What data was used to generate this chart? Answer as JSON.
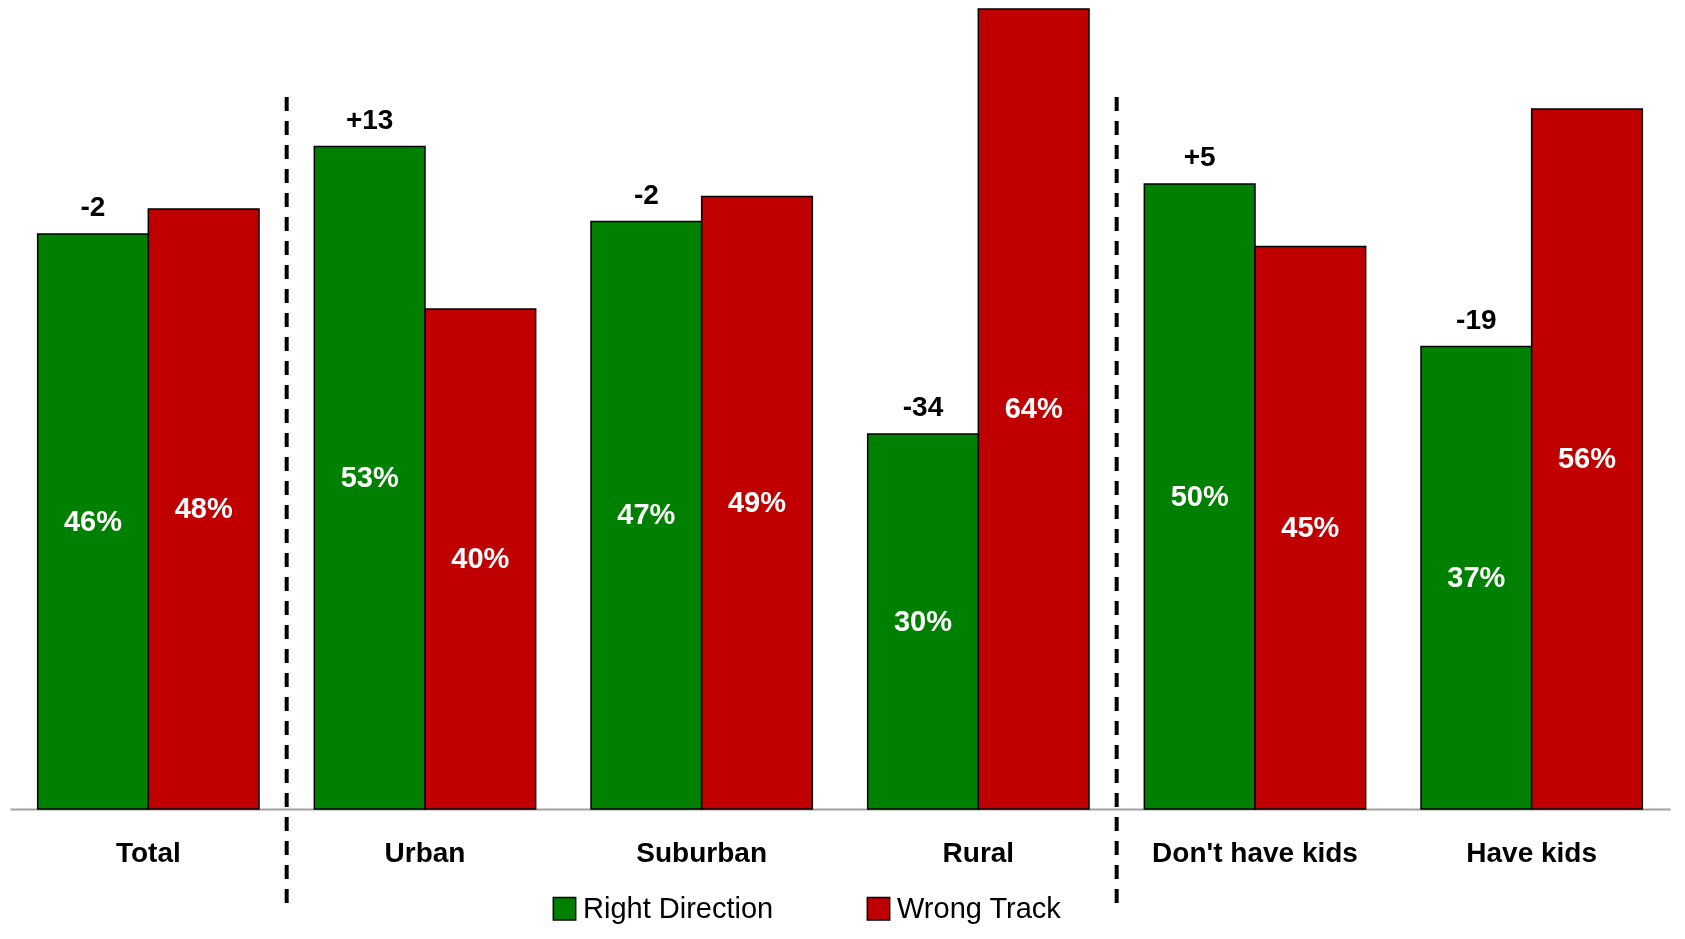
{
  "chart_data": {
    "type": "bar",
    "categories": [
      "Total",
      "Urban",
      "Suburban",
      "Rural",
      "Don't have kids",
      "Have kids"
    ],
    "series": [
      {
        "name": "Right Direction",
        "color": "#008000",
        "values": [
          46,
          53,
          47,
          30,
          50,
          37
        ],
        "value_labels": [
          "46%",
          "53%",
          "47%",
          "30%",
          "50%",
          "37%"
        ]
      },
      {
        "name": "Wrong Track",
        "color": "#c00000",
        "values": [
          48,
          40,
          49,
          64,
          45,
          56
        ],
        "value_labels": [
          "48%",
          "40%",
          "49%",
          "64%",
          "45%",
          "56%"
        ]
      }
    ],
    "annotations": [
      {
        "text": "-2",
        "x": "Total",
        "y": 46
      },
      {
        "text": "+13",
        "x": "Urban",
        "y": 53
      },
      {
        "text": "-2",
        "x": "Suburban",
        "y": 47
      },
      {
        "text": "-34",
        "x": "Rural",
        "y": 30
      },
      {
        "text": "+5",
        "x": "Don't have kids",
        "y": 50
      },
      {
        "text": "-19",
        "x": "Have kids",
        "y": 37
      }
    ],
    "legend": "bottom",
    "grid": false
  }
}
